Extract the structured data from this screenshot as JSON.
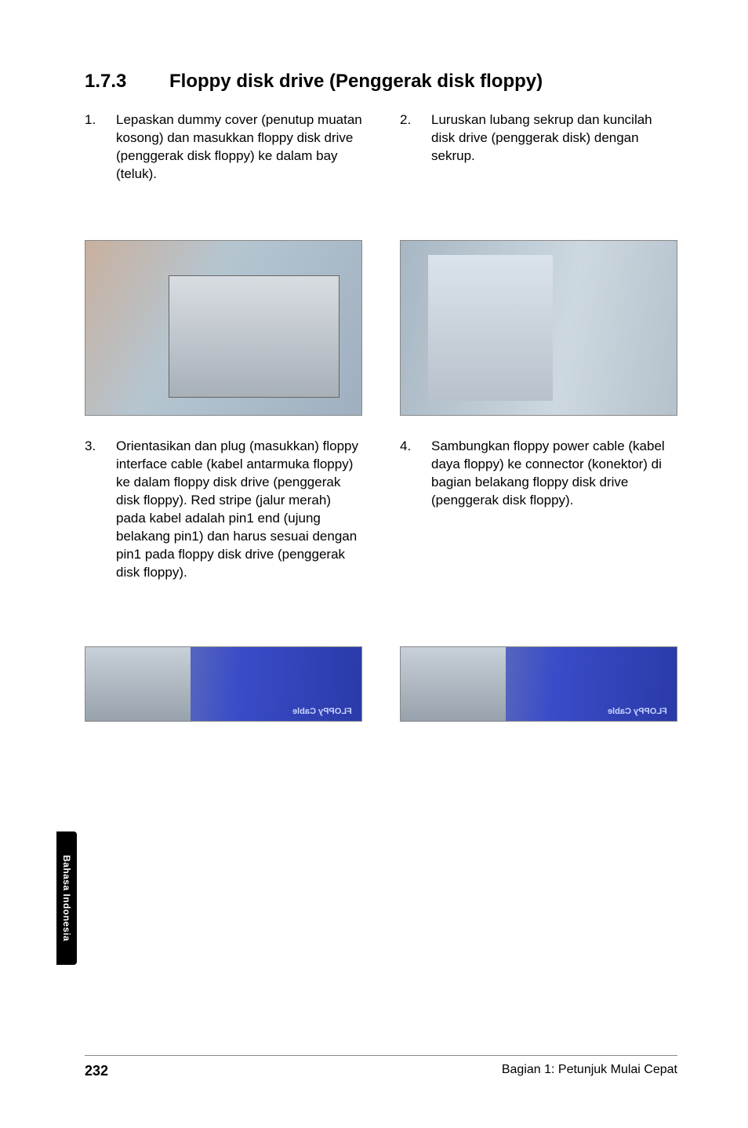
{
  "heading": {
    "number": "1.7.3",
    "title": "Floppy disk drive (Penggerak disk floppy)"
  },
  "steps": {
    "s1": {
      "num": "1.",
      "text": "Lepaskan dummy cover (penutup muatan kosong) dan masukkan floppy disk drive (penggerak disk floppy) ke dalam bay (teluk)."
    },
    "s2": {
      "num": "2.",
      "text": "Luruskan lubang sekrup dan kuncilah disk drive (penggerak disk) dengan sekrup."
    },
    "s3": {
      "num": "3.",
      "text": "Orientasikan dan plug (masukkan) floppy interface cable (kabel antarmuka floppy) ke dalam floppy disk drive (penggerak disk floppy). Red stripe (jalur merah) pada kabel adalah pin1 end (ujung belakang pin1) dan harus sesuai dengan pin1 pada floppy disk drive (penggerak disk floppy)."
    },
    "s4": {
      "num": "4.",
      "text": "Sambungkan floppy power cable (kabel daya floppy) ke connector (konektor) di bagian belakang floppy disk drive (penggerak disk floppy)."
    }
  },
  "photo_labels": {
    "p3": "FLOPPy Cable",
    "p4": "FLOPPy Cable"
  },
  "side_tab": "Bahasa Indonesia",
  "footer": {
    "page": "232",
    "section": "Bagian 1: Petunjuk Mulai Cepat"
  }
}
